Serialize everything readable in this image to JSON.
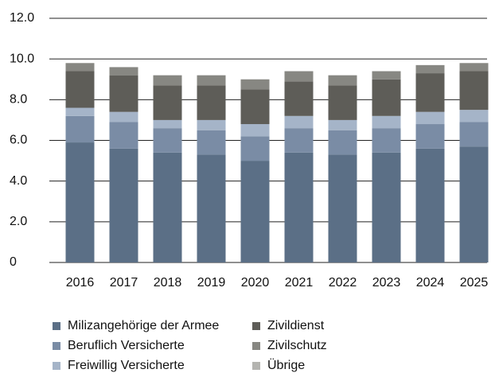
{
  "chart_data": {
    "type": "stacked_bar",
    "categories": [
      "2016",
      "2017",
      "2018",
      "2019",
      "2020",
      "2021",
      "2022",
      "2023",
      "2024",
      "2025"
    ],
    "series": [
      {
        "name": "Milizangehörige der Armee",
        "color": "#5b6f86",
        "values": [
          5.9,
          5.6,
          5.4,
          5.3,
          5.0,
          5.4,
          5.3,
          5.4,
          5.6,
          5.7
        ]
      },
      {
        "name": "Beruflich Versicherte",
        "color": "#7a8ca5",
        "values": [
          1.3,
          1.3,
          1.2,
          1.2,
          1.2,
          1.2,
          1.2,
          1.2,
          1.2,
          1.2
        ]
      },
      {
        "name": "Freiwillig Versicherte",
        "color": "#a5b4c8",
        "values": [
          0.4,
          0.5,
          0.4,
          0.5,
          0.6,
          0.6,
          0.5,
          0.6,
          0.6,
          0.6
        ]
      },
      {
        "name": "Zivildienst",
        "color": "#5e5d58",
        "values": [
          1.8,
          1.8,
          1.7,
          1.7,
          1.7,
          1.7,
          1.7,
          1.8,
          1.9,
          1.9
        ]
      },
      {
        "name": "Zivilschutz",
        "color": "#878782",
        "values": [
          0.4,
          0.4,
          0.5,
          0.5,
          0.5,
          0.5,
          0.5,
          0.4,
          0.4,
          0.4
        ]
      },
      {
        "name": "Übrige",
        "color": "#b4b4b0",
        "values": [
          0,
          0,
          0,
          0,
          0,
          0,
          0,
          0,
          0,
          0
        ]
      }
    ],
    "ylim": [
      0,
      12
    ],
    "yticks": [
      0,
      {
        "value": 2,
        "label": "2.0"
      },
      {
        "value": 4,
        "label": "4.0"
      },
      {
        "value": 6,
        "label": "6.0"
      },
      {
        "value": 8,
        "label": "8.0"
      },
      {
        "value": 10,
        "label": "10.0"
      },
      {
        "value": 12,
        "label": "12.0"
      }
    ],
    "grid": true
  }
}
